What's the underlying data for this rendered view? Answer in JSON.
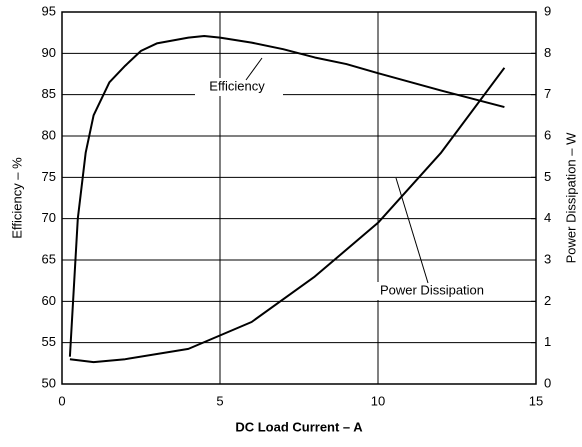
{
  "chart_data": {
    "type": "line",
    "xlabel": "DC Load Current – A",
    "ylabel": "Efficiency – %",
    "y2label": "Power Dissipation – W",
    "xlim": [
      0,
      15
    ],
    "xticks": [
      0,
      5,
      10,
      15
    ],
    "ylim": [
      50,
      95
    ],
    "yticks": [
      50,
      55,
      60,
      65,
      70,
      75,
      80,
      85,
      90,
      95
    ],
    "y2lim": [
      0,
      9
    ],
    "y2ticks": [
      0,
      1,
      2,
      3,
      4,
      5,
      6,
      7,
      8,
      9
    ],
    "grid": true,
    "series": [
      {
        "name": "Efficiency",
        "color": "#000000",
        "x": [
          0.25,
          0.5,
          0.75,
          1,
          1.5,
          2,
          2.5,
          3,
          4,
          4.5,
          5,
          6,
          7,
          8,
          9,
          10,
          12,
          14
        ],
        "values": [
          53.3,
          70,
          78,
          82.5,
          86.5,
          88.5,
          90.3,
          91.2,
          91.9,
          92.1,
          91.9,
          91.3,
          90.5,
          89.5,
          88.7,
          87.6,
          85.5,
          83.5
        ]
      },
      {
        "name": "Power Dissipation",
        "color": "#000000",
        "axis": "y2",
        "x": [
          0.25,
          1,
          2,
          4,
          6,
          8,
          10,
          12,
          14
        ],
        "values": [
          0.6,
          0.53,
          0.6,
          0.85,
          1.5,
          2.6,
          3.9,
          5.6,
          7.65
        ]
      }
    ]
  }
}
